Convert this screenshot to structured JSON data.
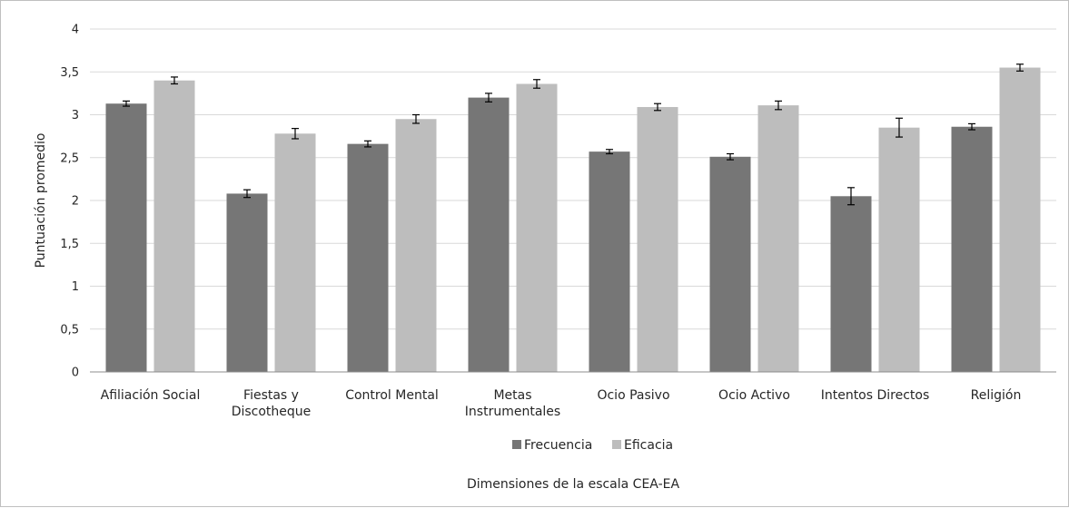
{
  "chart_data": {
    "type": "bar",
    "title": "",
    "xlabel": "Dimensiones de la escala CEA-EA",
    "ylabel": "Puntuación promedio",
    "ylim": [
      0,
      4
    ],
    "yticks": [
      0,
      0.5,
      1,
      1.5,
      2,
      2.5,
      3,
      3.5,
      4
    ],
    "ytick_labels": [
      "0",
      "0,5",
      "1",
      "1,5",
      "2",
      "2,5",
      "3",
      "3,5",
      "4"
    ],
    "grid": true,
    "legend_position": "bottom",
    "categories": [
      [
        "Afiliación Social"
      ],
      [
        "Fiestas y",
        "Discotheque"
      ],
      [
        "Control Mental"
      ],
      [
        "Metas",
        "Instrumentales"
      ],
      [
        "Ocio Pasivo"
      ],
      [
        "Ocio Activo"
      ],
      [
        "Intentos Directos"
      ],
      [
        "Religión"
      ]
    ],
    "series": [
      {
        "name": "Frecuencia",
        "color": "#767676",
        "values": [
          3.13,
          2.08,
          2.66,
          3.2,
          2.57,
          2.51,
          2.05,
          2.86
        ],
        "error": [
          0.03,
          0.045,
          0.035,
          0.05,
          0.025,
          0.035,
          0.1,
          0.035
        ]
      },
      {
        "name": "Eficacia",
        "color": "#bdbdbd",
        "values": [
          3.4,
          2.78,
          2.95,
          3.36,
          3.09,
          3.11,
          2.85,
          3.55
        ],
        "error": [
          0.04,
          0.06,
          0.05,
          0.05,
          0.04,
          0.05,
          0.11,
          0.04
        ]
      }
    ]
  }
}
